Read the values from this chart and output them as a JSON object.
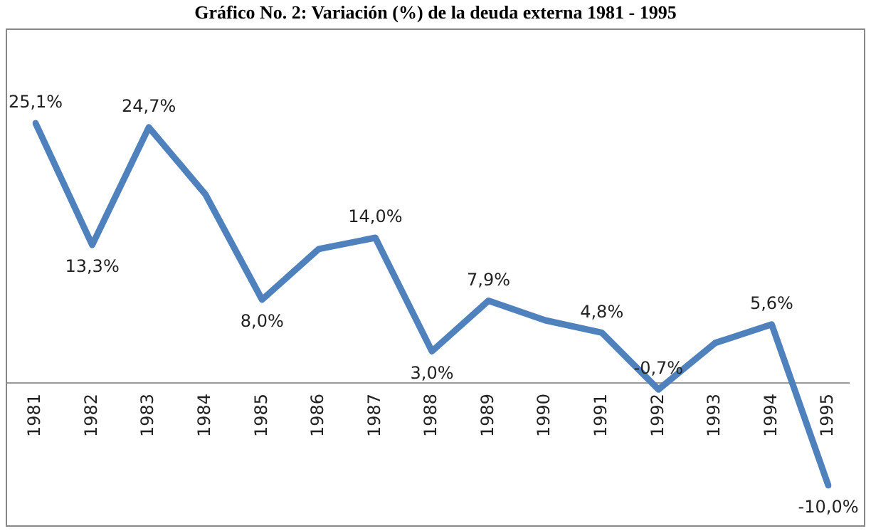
{
  "chart_data": {
    "type": "line",
    "title": "Gráfico No. 2: Variación (%) de la deuda externa 1981 - 1995",
    "categories": [
      "1981",
      "1982",
      "1983",
      "1984",
      "1985",
      "1986",
      "1987",
      "1988",
      "1989",
      "1990",
      "1991",
      "1992",
      "1993",
      "1994",
      "1995"
    ],
    "series": [
      {
        "color": "#4f81bd",
        "values": [
          25.1,
          13.3,
          24.7,
          18.2,
          8.0,
          12.9,
          14.0,
          3.0,
          7.9,
          6.0,
          4.8,
          -0.7,
          3.8,
          5.6,
          -10.0
        ],
        "value_labels": [
          "25,1%",
          "13,3%",
          "24,7%",
          null,
          "8,0%",
          null,
          "14,0%",
          "3,0%",
          "7,9%",
          null,
          "4,8%",
          "-0,7%",
          null,
          "5,6%",
          "-10,0%"
        ]
      }
    ],
    "marker": "none",
    "grid": false,
    "legend": false,
    "tick_labels": "x"
  }
}
